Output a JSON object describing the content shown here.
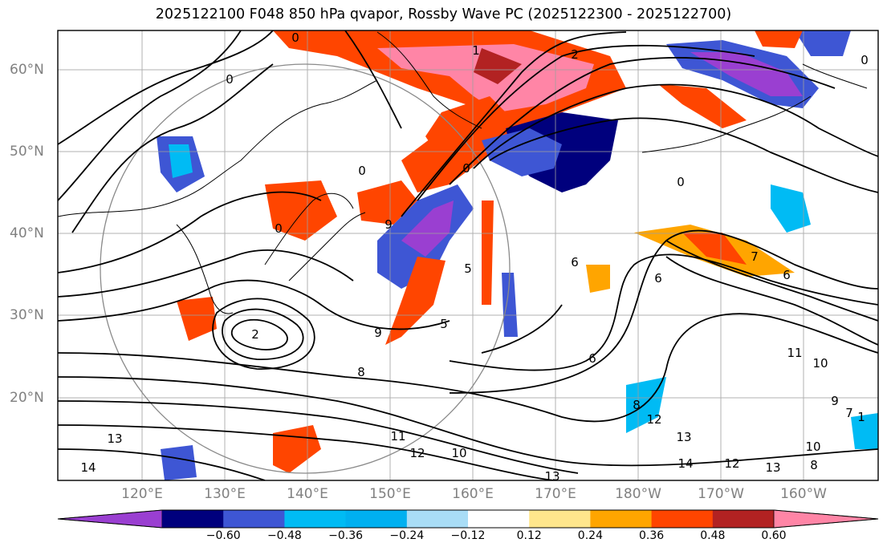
{
  "title": "2025122100 F048 850 hPa qvapor, Rossby Wave PC (2025122300 - 2025122700)",
  "lat_labels": [
    "60°N",
    "50°N",
    "40°N",
    "30°N",
    "20°N"
  ],
  "lon_labels": [
    "120°E",
    "130°E",
    "140°E",
    "150°E",
    "160°E",
    "170°E",
    "180°W",
    "170°W",
    "160°W"
  ],
  "colorbar": {
    "colors": [
      "#9a3fd1",
      "#00007d",
      "#3e56d4",
      "#00bbf4",
      "#00b0f0",
      "#a9ddf6",
      "#ffffff",
      "#ffe68c",
      "#ffa500",
      "#ff4500",
      "#b22222",
      "#ff85a6"
    ],
    "labels": [
      "−0.60",
      "−0.48",
      "−0.36",
      "−0.24",
      "−0.12",
      "0.12",
      "0.24",
      "0.36",
      "0.48",
      "0.60"
    ]
  },
  "contour_labels": [
    "0",
    "1",
    "2",
    "0",
    "0",
    "0",
    "0",
    "0",
    "0",
    "9",
    "5",
    "2",
    "9",
    "8",
    "5",
    "6",
    "6",
    "6",
    "7",
    "6",
    "11",
    "10",
    "8",
    "13",
    "11",
    "12",
    "10",
    "12",
    "13",
    "14",
    "10",
    "13",
    "8",
    "9",
    "7",
    "14",
    "1",
    "12",
    "13"
  ]
}
